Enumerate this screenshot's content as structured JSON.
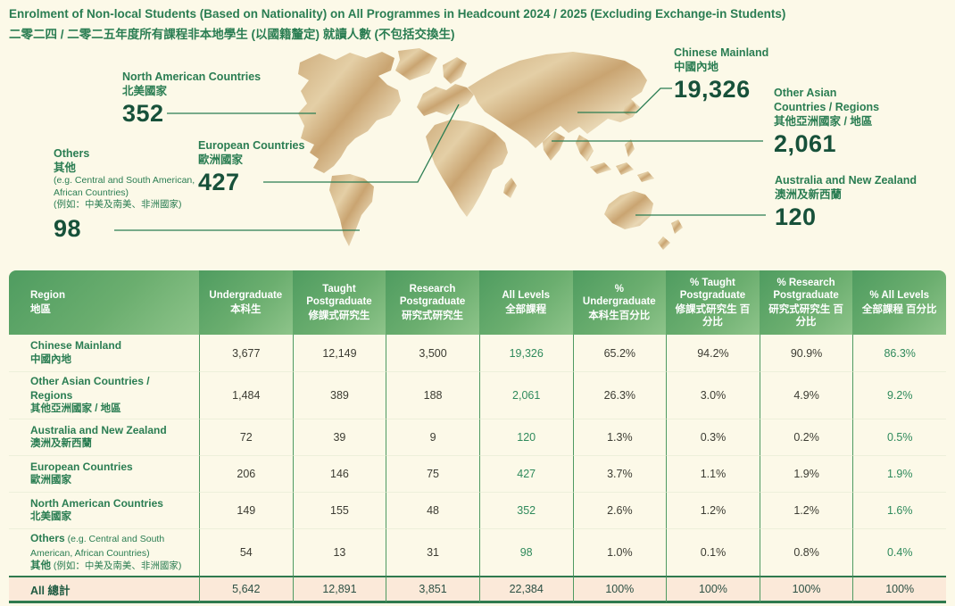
{
  "page": {
    "title_en": "Enrolment of Non-local Students (Based on Nationality) on All Programmes in Headcount 2024 / 2025 (Excluding Exchange-in Students)",
    "title_zh": "二零二四 / 二零二五年度所有課程非本地學生 (以國籍釐定) 就讀人數 (不包括交換生)",
    "colors": {
      "accent_green": "#2a7d52",
      "dark_green_number": "#17513a",
      "map_gold": "#cfae7e",
      "header_gradient": [
        "#4f9c60",
        "#8ec48a"
      ],
      "total_row_bg": "#fbe9d9",
      "background": "#fcf9e8"
    }
  },
  "map": {
    "regions": [
      {
        "id": "north-america",
        "label_en": "North American Countries",
        "label_zh": "北美國家",
        "note_en": "",
        "note_zh": "",
        "value": "352"
      },
      {
        "id": "europe",
        "label_en": "European Countries",
        "label_zh": "歐洲國家",
        "note_en": "",
        "note_zh": "",
        "value": "427"
      },
      {
        "id": "others",
        "label_en": "Others",
        "label_zh": "其他",
        "note_en": "(e.g. Central and South American, African Countries)",
        "note_zh": "(例如：中美及南美、非洲國家)",
        "value": "98"
      },
      {
        "id": "chinese-mainland",
        "label_en": "Chinese Mainland",
        "label_zh": "中國內地",
        "note_en": "",
        "note_zh": "",
        "value": "19,326"
      },
      {
        "id": "other-asian",
        "label_en": "Other Asian Countries / Regions",
        "label_zh": "其他亞洲國家 / 地區",
        "note_en": "",
        "note_zh": "",
        "value": "2,061"
      },
      {
        "id": "australia-new-zealand",
        "label_en": "Australia and New Zealand",
        "label_zh": "澳洲及新西蘭",
        "note_en": "",
        "note_zh": "",
        "value": "120"
      }
    ]
  },
  "table": {
    "headers": [
      {
        "key": "region",
        "en": "Region",
        "zh": "地區"
      },
      {
        "key": "undergraduate",
        "en": "Undergraduate",
        "zh": "本科生"
      },
      {
        "key": "taught-postgraduate",
        "en": "Taught Postgraduate",
        "zh": "修課式研究生"
      },
      {
        "key": "research-postgraduate",
        "en": "Research Postgraduate",
        "zh": "研究式研究生"
      },
      {
        "key": "all-levels",
        "en": "All Levels",
        "zh": "全部課程"
      },
      {
        "key": "pct-undergraduate",
        "en": "% Undergraduate",
        "zh": "本科生百分比"
      },
      {
        "key": "pct-taught-postgraduate",
        "en": "% Taught Postgraduate",
        "zh": "修課式研究生 百分比"
      },
      {
        "key": "pct-research-postgraduate",
        "en": "% Research Postgraduate",
        "zh": "研究式研究生 百分比"
      },
      {
        "key": "pct-all-levels",
        "en": "% All Levels",
        "zh": "全部課程 百分比"
      }
    ],
    "rows": [
      {
        "name_en": "Chinese Mainland",
        "note_en": "",
        "name_zh": "中國內地",
        "note_zh": "",
        "cells": [
          "3,677",
          "12,149",
          "3,500",
          "19,326",
          "65.2%",
          "94.2%",
          "90.9%",
          "86.3%"
        ]
      },
      {
        "name_en": "Other Asian Countries / Regions",
        "note_en": "",
        "name_zh": "其他亞洲國家 / 地區",
        "note_zh": "",
        "cells": [
          "1,484",
          "389",
          "188",
          "2,061",
          "26.3%",
          "3.0%",
          "4.9%",
          "9.2%"
        ]
      },
      {
        "name_en": "Australia and New Zealand",
        "note_en": "",
        "name_zh": "澳洲及新西蘭",
        "note_zh": "",
        "cells": [
          "72",
          "39",
          "9",
          "120",
          "1.3%",
          "0.3%",
          "0.2%",
          "0.5%"
        ]
      },
      {
        "name_en": "European Countries",
        "note_en": "",
        "name_zh": "歐洲國家",
        "note_zh": "",
        "cells": [
          "206",
          "146",
          "75",
          "427",
          "3.7%",
          "1.1%",
          "1.9%",
          "1.9%"
        ]
      },
      {
        "name_en": "North American Countries",
        "note_en": "",
        "name_zh": "北美國家",
        "note_zh": "",
        "cells": [
          "149",
          "155",
          "48",
          "352",
          "2.6%",
          "1.2%",
          "1.2%",
          "1.6%"
        ]
      },
      {
        "name_en": "Others",
        "note_en": "(e.g. Central and South American, African Countries)",
        "name_zh": "其他",
        "note_zh": "(例如：中美及南美、非洲國家)",
        "cells": [
          "54",
          "13",
          "31",
          "98",
          "1.0%",
          "0.1%",
          "0.8%",
          "0.4%"
        ]
      }
    ],
    "total": {
      "label": "All 總計",
      "cells": [
        "5,642",
        "12,891",
        "3,851",
        "22,384",
        "100%",
        "100%",
        "100%",
        "100%"
      ]
    }
  },
  "chart_data": {
    "type": "table",
    "title": "Enrolment of Non-local Students (Based on Nationality) on All Programmes in Headcount 2024 / 2025 (Excluding Exchange-in Students)",
    "categories": [
      "Chinese Mainland",
      "Other Asian Countries / Regions",
      "Australia and New Zealand",
      "European Countries",
      "North American Countries",
      "Others (e.g. Central and South American, African Countries)"
    ],
    "series": [
      {
        "name": "Undergraduate",
        "values": [
          3677,
          1484,
          72,
          206,
          149,
          54
        ]
      },
      {
        "name": "Taught Postgraduate",
        "values": [
          12149,
          389,
          39,
          146,
          155,
          13
        ]
      },
      {
        "name": "Research Postgraduate",
        "values": [
          3500,
          188,
          9,
          75,
          48,
          31
        ]
      },
      {
        "name": "All Levels",
        "values": [
          19326,
          2061,
          120,
          427,
          352,
          98
        ]
      },
      {
        "name": "% Undergraduate",
        "values": [
          65.2,
          26.3,
          1.3,
          3.7,
          2.6,
          1.0
        ]
      },
      {
        "name": "% Taught Postgraduate",
        "values": [
          94.2,
          3.0,
          0.3,
          1.1,
          1.2,
          0.1
        ]
      },
      {
        "name": "% Research Postgraduate",
        "values": [
          90.9,
          4.9,
          0.2,
          1.9,
          1.2,
          0.8
        ]
      },
      {
        "name": "% All Levels",
        "values": [
          86.3,
          9.2,
          0.5,
          1.9,
          1.6,
          0.4
        ]
      }
    ],
    "totals": {
      "Undergraduate": 5642,
      "Taught Postgraduate": 12891,
      "Research Postgraduate": 3851,
      "All Levels": 22384,
      "% columns": "100%"
    }
  }
}
